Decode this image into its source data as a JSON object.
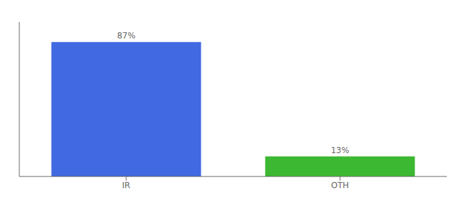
{
  "chart_data": {
    "type": "bar",
    "categories": [
      "IR",
      "OTH"
    ],
    "values": [
      87,
      13
    ],
    "value_labels": [
      "87%",
      "13%"
    ],
    "colors": [
      "#4169e1",
      "#3cb832"
    ],
    "ylim": [
      0,
      100
    ],
    "data_labels": true,
    "tick_labels": "x",
    "grid": false
  }
}
